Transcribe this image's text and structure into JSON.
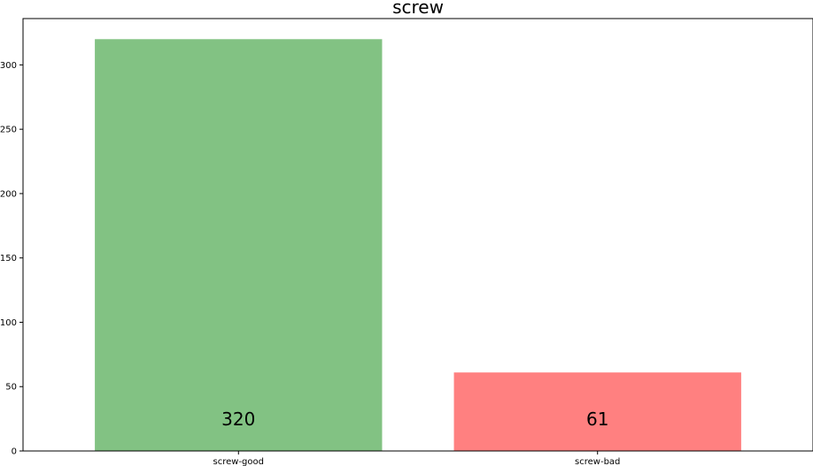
{
  "chart_data": {
    "type": "bar",
    "title": "screw",
    "xlabel": "",
    "ylabel": "",
    "categories": [
      "screw-good",
      "screw-bad"
    ],
    "values": [
      320,
      61
    ],
    "data_labels": [
      "320",
      "61"
    ],
    "colors": [
      "#82c283",
      "#ff8080"
    ],
    "ylim": [
      0,
      336
    ],
    "yticks": [
      0,
      50,
      100,
      150,
      200,
      250,
      300
    ],
    "ytick_labels": [
      "0",
      "50",
      "100",
      "150",
      "200",
      "250",
      "300"
    ],
    "grid": false,
    "legend": "none"
  }
}
